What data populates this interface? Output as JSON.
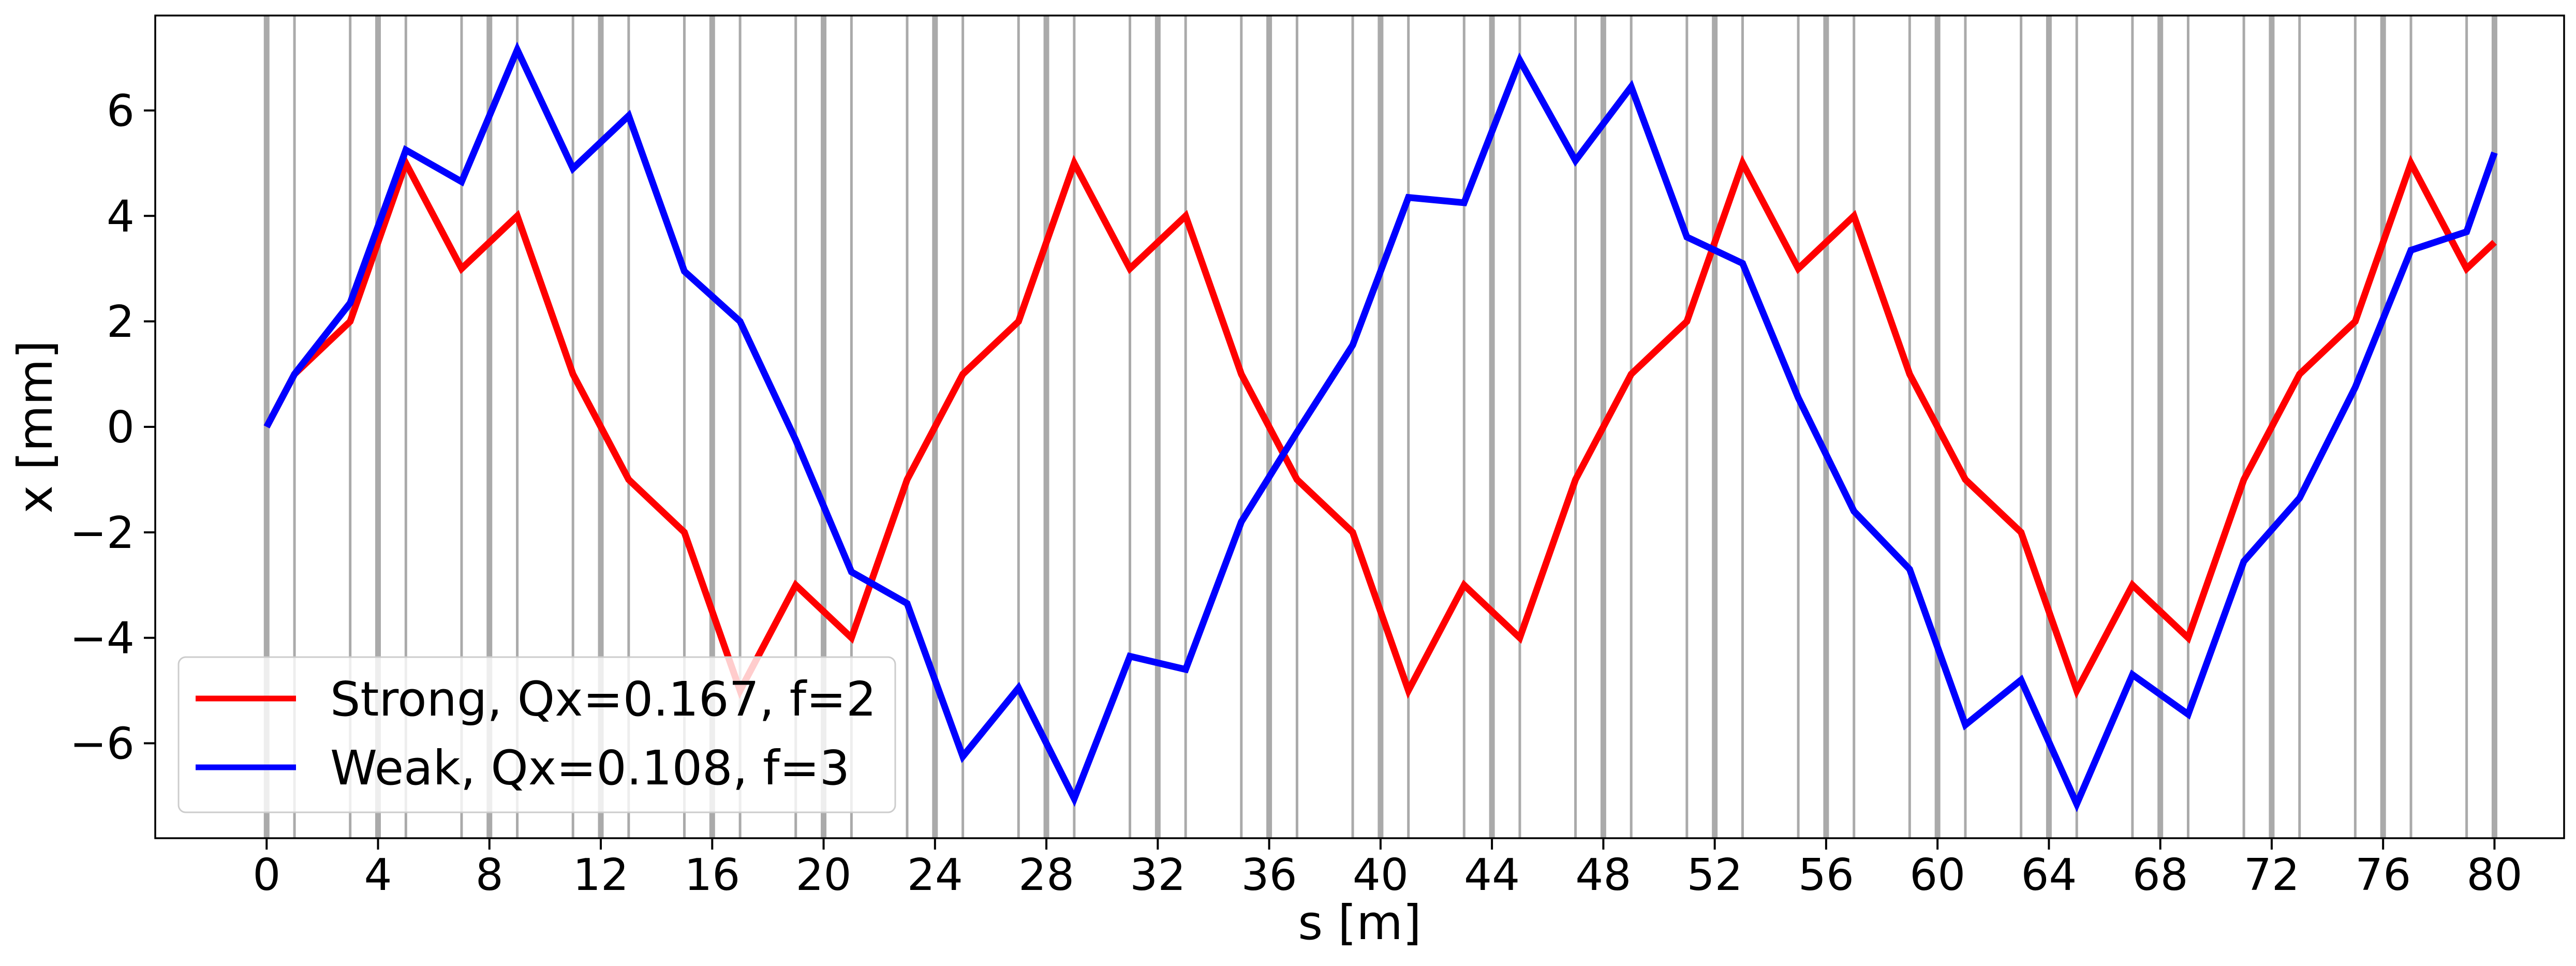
{
  "chart_data": {
    "type": "line",
    "title": "",
    "xlabel": "s [m]",
    "ylabel": "x [mm]",
    "xlim": [
      -4,
      82.5
    ],
    "ylim": [
      -7.8,
      7.8
    ],
    "xticks": [
      0,
      4,
      8,
      12,
      16,
      20,
      24,
      28,
      32,
      36,
      40,
      44,
      48,
      52,
      56,
      60,
      64,
      68,
      72,
      76,
      80
    ],
    "yticks": [
      -6,
      -4,
      -2,
      0,
      2,
      4,
      6
    ],
    "ytick_labels": [
      "−6",
      "−4",
      "−2",
      "0",
      "2",
      "4",
      "6"
    ],
    "grid": false,
    "legend_position": "lower-left",
    "element_markers": {
      "color": "#aaaaaa",
      "thick": [
        0,
        4,
        8,
        12,
        16,
        20,
        24,
        28,
        32,
        36,
        40,
        44,
        48,
        52,
        56,
        60,
        64,
        68,
        72,
        76,
        80
      ],
      "thin": [
        1,
        3,
        5,
        7,
        9,
        11,
        13,
        15,
        17,
        19,
        21,
        23,
        25,
        27,
        29,
        31,
        33,
        35,
        37,
        39,
        41,
        43,
        45,
        47,
        49,
        51,
        53,
        55,
        57,
        59,
        61,
        63,
        65,
        67,
        69,
        71,
        73,
        75,
        77,
        79
      ]
    },
    "series": [
      {
        "name": "Strong, Qx=0.167, f=2",
        "color": "#ff0000",
        "x": [
          0,
          1,
          3,
          5,
          7,
          9,
          11,
          13,
          15,
          17,
          19,
          21,
          23,
          25,
          27,
          29,
          31,
          33,
          35,
          37,
          39,
          41,
          43,
          45,
          47,
          49,
          51,
          53,
          55,
          57,
          59,
          61,
          63,
          65,
          67,
          69,
          71,
          73,
          75,
          77,
          79,
          80
        ],
        "y": [
          0,
          1,
          2,
          5,
          3,
          4,
          1,
          -1,
          -2,
          -5,
          -3,
          -4,
          -1,
          1,
          2,
          5,
          3,
          4,
          1,
          -1,
          -2,
          -5,
          -3,
          -4,
          -1,
          1,
          2,
          5,
          3,
          4,
          1,
          -1,
          -2,
          -5,
          -3,
          -4,
          -1,
          1,
          2,
          5,
          3,
          3.5
        ]
      },
      {
        "name": "Weak, Qx=0.108, f=3",
        "color": "#0000ff",
        "x": [
          0,
          1,
          3,
          5,
          7,
          9,
          11,
          13,
          15,
          17,
          19,
          21,
          23,
          25,
          27,
          29,
          31,
          33,
          35,
          37,
          39,
          41,
          43,
          45,
          47,
          49,
          51,
          53,
          55,
          57,
          59,
          61,
          63,
          65,
          67,
          69,
          71,
          73,
          75,
          77,
          79,
          80
        ],
        "y": [
          0,
          1,
          2.35,
          5.25,
          4.65,
          7.15,
          4.9,
          5.9,
          2.95,
          2.0,
          -0.25,
          -2.75,
          -3.35,
          -6.25,
          -4.95,
          -7.05,
          -4.35,
          -4.6,
          -1.8,
          -0.1,
          1.55,
          4.35,
          4.25,
          6.95,
          5.05,
          6.45,
          3.6,
          3.1,
          0.55,
          -1.6,
          -2.7,
          -5.65,
          -4.8,
          -7.15,
          -4.7,
          -5.45,
          -2.55,
          -1.35,
          0.75,
          3.35,
          3.7,
          5.2
        ]
      }
    ]
  }
}
